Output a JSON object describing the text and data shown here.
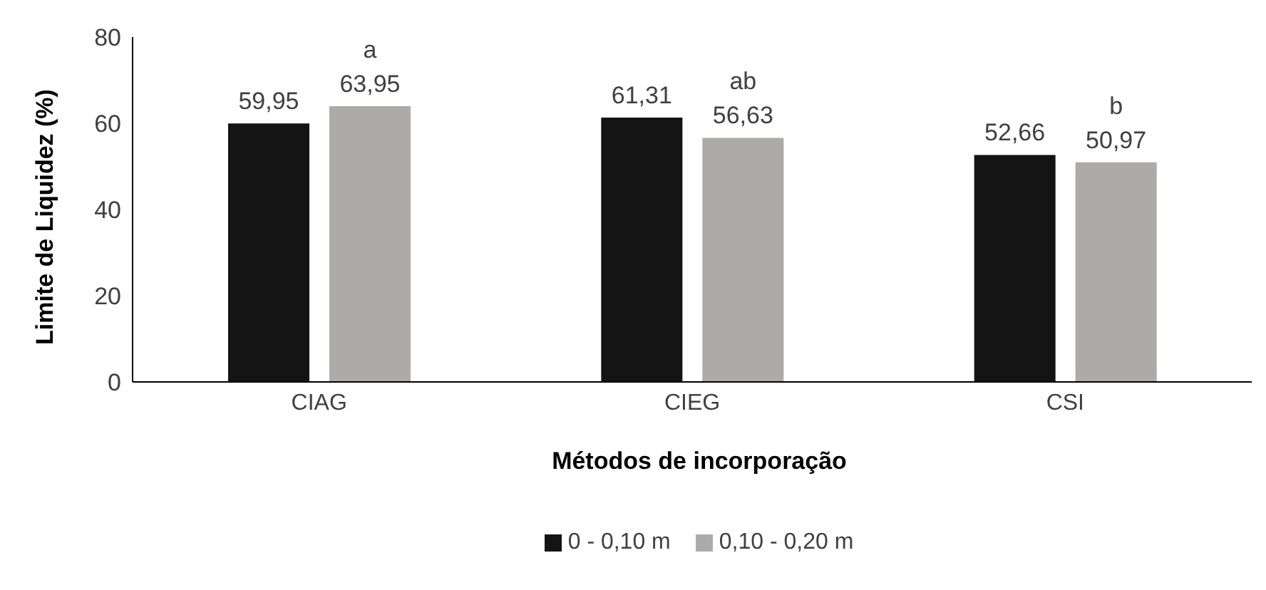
{
  "chart_data": {
    "type": "bar",
    "ylabel": "Limite de Liquidez (%)",
    "xlabel": "Métodos de incorporação",
    "categories": [
      "CIAG",
      "CIEG",
      "CSI"
    ],
    "series": [
      {
        "name": "0 - 0,10 m",
        "color": "#141414",
        "values": [
          59.95,
          61.31,
          52.66
        ],
        "value_labels": [
          "59,95",
          "61,31",
          "52,66"
        ]
      },
      {
        "name": "0,10 - 0,20 m",
        "color": "#aeaaaa",
        "values": [
          63.95,
          56.63,
          50.97
        ],
        "value_labels": [
          "63,95",
          "56,63",
          "50,97"
        ]
      }
    ],
    "annotations": [
      "a",
      "ab",
      "b"
    ],
    "ylim": [
      0,
      80
    ],
    "yticks": [
      0,
      20,
      40,
      60,
      80
    ],
    "grid": false,
    "legend": "bottom"
  }
}
